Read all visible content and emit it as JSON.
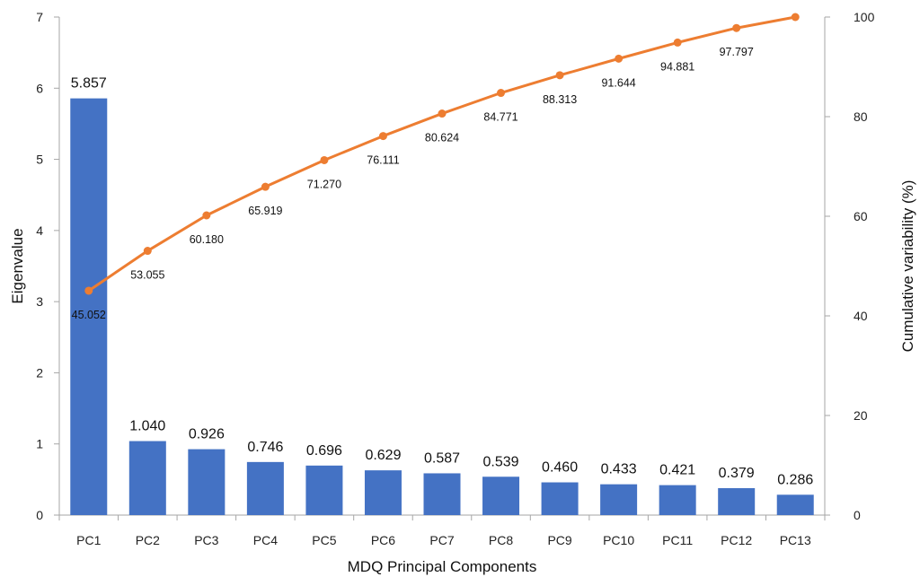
{
  "chart_data": {
    "type": "bar",
    "categories": [
      "PC1",
      "PC2",
      "PC3",
      "PC4",
      "PC5",
      "PC6",
      "PC7",
      "PC8",
      "PC9",
      "PC10",
      "PC11",
      "PC12",
      "PC13"
    ],
    "series": [
      {
        "name": "",
        "type": "bar",
        "axis": "left",
        "values": [
          5.857,
          1.04,
          0.926,
          0.746,
          0.696,
          0.629,
          0.587,
          0.539,
          0.46,
          0.433,
          0.421,
          0.379,
          0.286
        ],
        "labels": [
          "5.857",
          "1.040",
          "0.926",
          "0.746",
          "0.696",
          "0.629",
          "0.587",
          "0.539",
          "0.460",
          "0.433",
          "0.421",
          "0.379",
          "0.286"
        ]
      },
      {
        "name": "",
        "type": "line",
        "axis": "right",
        "values": [
          45.052,
          53.055,
          60.18,
          65.919,
          71.27,
          76.111,
          80.624,
          84.771,
          88.313,
          91.644,
          94.881,
          97.797,
          100
        ],
        "labels": [
          "45.052",
          "53.055",
          "60.180",
          "65.919",
          "71.270",
          "76.111",
          "80.624",
          "84.771",
          "88.313",
          "91.644",
          "94.881",
          "97.797",
          ""
        ]
      }
    ],
    "xlabel": "MDQ Principal Components",
    "ylabel": "Eigenvalue",
    "y2label": "Cumulative variability (%)",
    "ylim": [
      0,
      7
    ],
    "y2lim": [
      0,
      100
    ],
    "yticks": [
      "0",
      "1",
      "2",
      "3",
      "4",
      "5",
      "6",
      "7"
    ],
    "y2ticks": [
      "0",
      "20",
      "40",
      "60",
      "80",
      "100"
    ],
    "grid": false,
    "legend": "none",
    "colors": {
      "bar": "#4472C4",
      "line": "#ED7D31",
      "axis": "#A6A6A6"
    }
  }
}
